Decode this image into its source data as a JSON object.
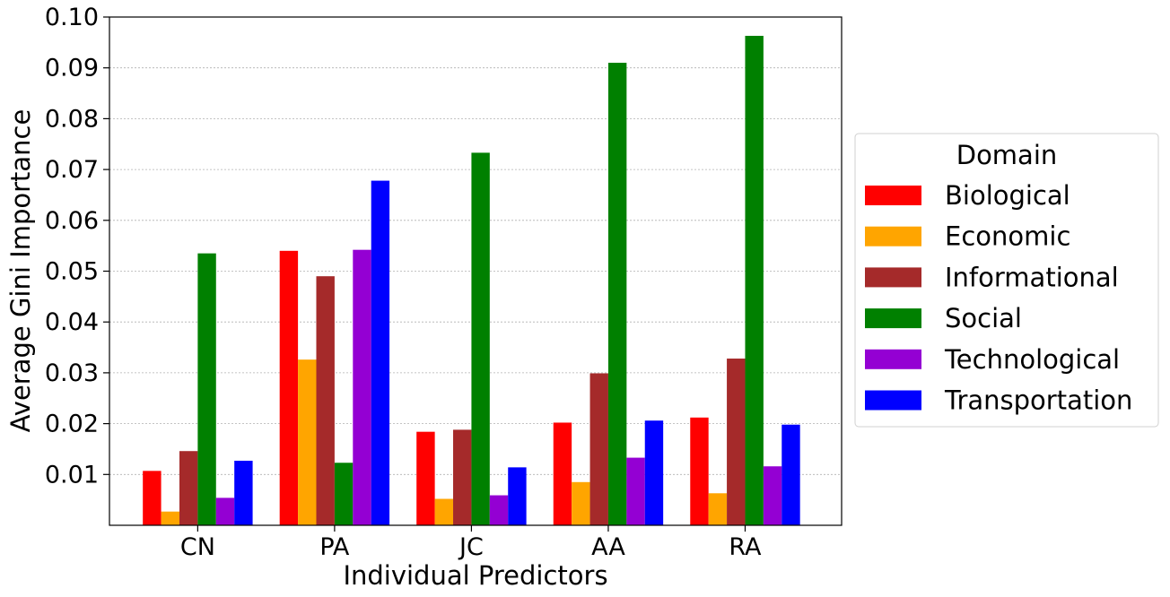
{
  "chart_data": {
    "type": "bar",
    "title": "",
    "xlabel": "Individual Predictors",
    "ylabel": "Average Gini Importance",
    "categories": [
      "CN",
      "PA",
      "JC",
      "AA",
      "RA"
    ],
    "ylim": [
      0,
      0.1
    ],
    "yticks": [
      "0.01",
      "0.02",
      "0.03",
      "0.04",
      "0.05",
      "0.06",
      "0.07",
      "0.08",
      "0.09",
      "0.10"
    ],
    "ytick_values": [
      0.01,
      0.02,
      0.03,
      0.04,
      0.05,
      0.06,
      0.07,
      0.08,
      0.09,
      0.1
    ],
    "grid": "horizontal, dashed",
    "legend": {
      "title": "Domain",
      "placement": "outside-right"
    },
    "series": [
      {
        "name": "Biological",
        "color": "#ff0000",
        "values": [
          0.0107,
          0.054,
          0.0184,
          0.0202,
          0.0212
        ]
      },
      {
        "name": "Economic",
        "color": "#ffa500",
        "values": [
          0.0027,
          0.0326,
          0.0052,
          0.0085,
          0.0063
        ]
      },
      {
        "name": "Informational",
        "color": "#a52a2a",
        "values": [
          0.0146,
          0.049,
          0.0188,
          0.0299,
          0.0328
        ]
      },
      {
        "name": "Social",
        "color": "#008000",
        "values": [
          0.0535,
          0.0123,
          0.0733,
          0.091,
          0.0963
        ]
      },
      {
        "name": "Technological",
        "color": "#9400d3",
        "values": [
          0.0054,
          0.0542,
          0.0059,
          0.0133,
          0.0116
        ]
      },
      {
        "name": "Transportation",
        "color": "#0000ff",
        "values": [
          0.0127,
          0.0678,
          0.0114,
          0.0206,
          0.0198
        ]
      }
    ]
  }
}
